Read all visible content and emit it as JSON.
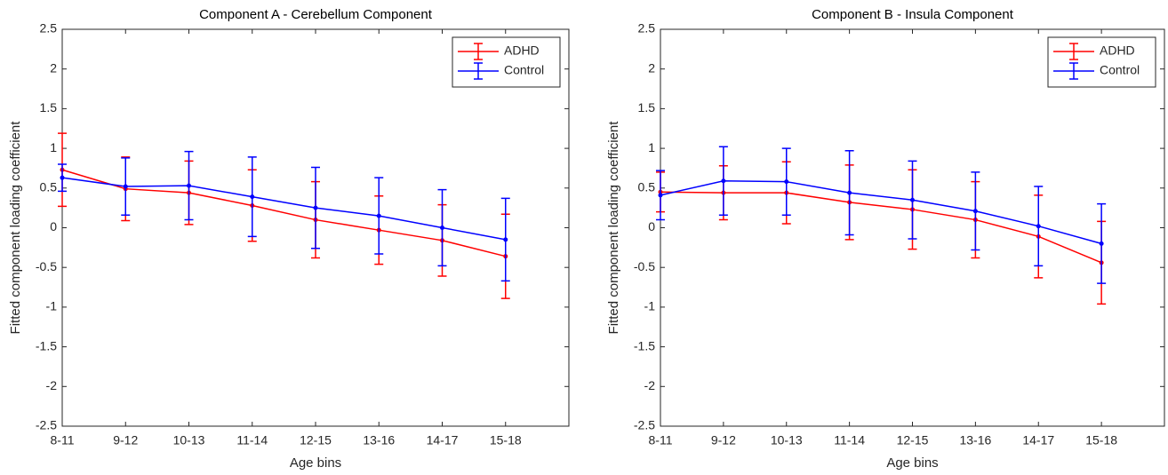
{
  "chart_data": [
    {
      "type": "line",
      "title": "Component A - Cerebellum Component",
      "xlabel": "Age bins",
      "ylabel": "Fitted component loading coefficient",
      "categories": [
        "8-11",
        "9-12",
        "10-13",
        "11-14",
        "12-15",
        "13-16",
        "14-17",
        "15-18"
      ],
      "series": [
        {
          "name": "ADHD",
          "color": "#ff0000",
          "values": [
            0.73,
            0.49,
            0.44,
            0.28,
            0.1,
            -0.03,
            -0.16,
            -0.36
          ],
          "errors": [
            0.46,
            0.4,
            0.4,
            0.45,
            0.48,
            0.43,
            0.45,
            0.53
          ]
        },
        {
          "name": "Control",
          "color": "#0000ff",
          "values": [
            0.63,
            0.52,
            0.53,
            0.39,
            0.25,
            0.15,
            0,
            -0.15
          ],
          "errors": [
            0.17,
            0.36,
            0.43,
            0.5,
            0.51,
            0.48,
            0.48,
            0.52
          ]
        }
      ],
      "ylim": [
        -2.5,
        2.5
      ],
      "yticks": [
        -2.5,
        -2,
        -1.5,
        -1,
        -0.5,
        0,
        0.5,
        1,
        1.5,
        2,
        2.5
      ],
      "legend": "upper right"
    },
    {
      "type": "line",
      "title": "Component B - Insula Component",
      "xlabel": "Age bins",
      "ylabel": "Fitted component loading coefficient",
      "categories": [
        "8-11",
        "9-12",
        "10-13",
        "11-14",
        "12-15",
        "13-16",
        "14-17",
        "15-18"
      ],
      "series": [
        {
          "name": "ADHD",
          "color": "#ff0000",
          "values": [
            0.45,
            0.44,
            0.44,
            0.32,
            0.23,
            0.1,
            -0.11,
            -0.44
          ],
          "errors": [
            0.25,
            0.34,
            0.39,
            0.47,
            0.5,
            0.48,
            0.52,
            0.52
          ]
        },
        {
          "name": "Control",
          "color": "#0000ff",
          "values": [
            0.41,
            0.59,
            0.58,
            0.44,
            0.35,
            0.21,
            0.02,
            -0.2
          ],
          "errors": [
            0.31,
            0.43,
            0.42,
            0.53,
            0.49,
            0.49,
            0.5,
            0.5
          ]
        }
      ],
      "ylim": [
        -2.5,
        2.5
      ],
      "yticks": [
        -2.5,
        -2,
        -1.5,
        -1,
        -0.5,
        0,
        0.5,
        1,
        1.5,
        2,
        2.5
      ],
      "legend": "upper right"
    }
  ]
}
